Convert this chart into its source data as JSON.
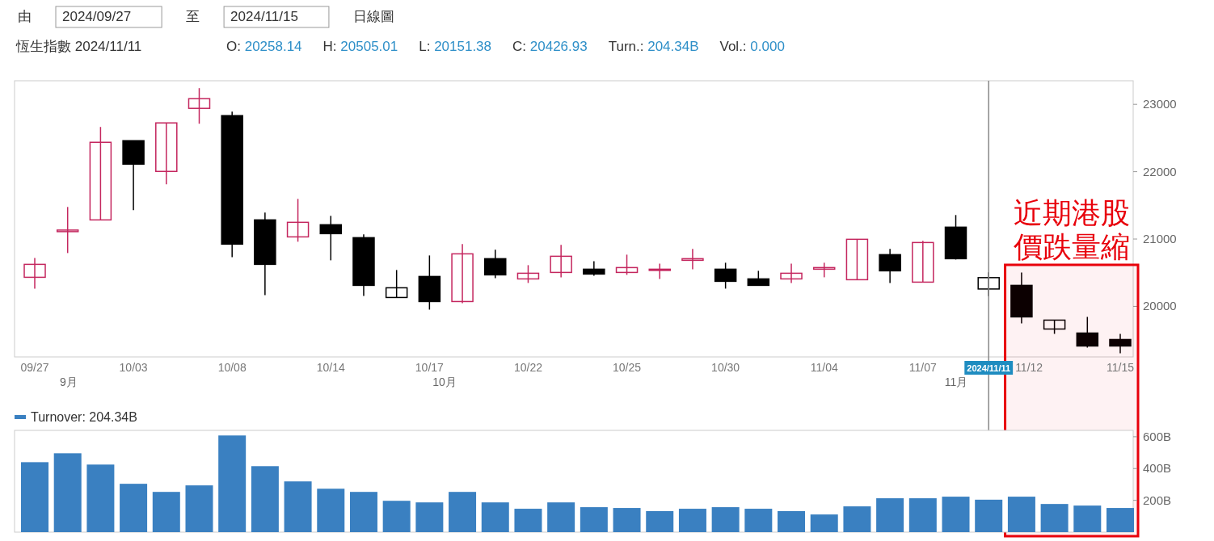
{
  "chart_data": [
    {
      "type": "candlestick",
      "title": "恆生指數 2024/11/11",
      "subtitle": "O: 20258.14  H: 20505.01  L: 20151.38  C: 20426.93  Turn.: 204.34B  Vol.: 0.000",
      "annotations": [
        "由",
        "2024/09/27",
        "至",
        "2024/11/15",
        "日線圖",
        "9月",
        "10月",
        "11月"
      ],
      "categories": [
        "09/27",
        null,
        null,
        "10/03",
        null,
        null,
        "10/08",
        null,
        null,
        "10/14",
        null,
        null,
        "10/17",
        null,
        null,
        "10/22",
        null,
        null,
        "10/25",
        null,
        null,
        "10/30",
        null,
        null,
        "11/04",
        null,
        null,
        "11/07",
        null,
        "2024/11/11",
        "11/12",
        null,
        null,
        "11/15"
      ],
      "ohlc": [
        [
          20432,
          20720,
          20264,
          20624
        ],
        [
          21110,
          21476,
          20792,
          21133
        ],
        [
          21284,
          22664,
          21284,
          22436
        ],
        [
          22460,
          22460,
          21428,
          22112
        ],
        [
          22004,
          22724,
          21812,
          22724
        ],
        [
          22940,
          23240,
          22712,
          23084
        ],
        [
          22832,
          22892,
          20732,
          20924
        ],
        [
          21284,
          21392,
          20168,
          20624
        ],
        [
          21032,
          21596,
          20960,
          21248
        ],
        [
          21212,
          21344,
          20684,
          21080
        ],
        [
          21020,
          21068,
          20156,
          20312
        ],
        [
          20132,
          20540,
          20132,
          20276
        ],
        [
          20444,
          20756,
          19952,
          20072
        ],
        [
          20072,
          20924,
          20048,
          20780
        ],
        [
          20708,
          20840,
          20420,
          20468
        ],
        [
          20408,
          20612,
          20348,
          20492
        ],
        [
          20504,
          20912,
          20432,
          20744
        ],
        [
          20552,
          20672,
          20456,
          20480
        ],
        [
          20504,
          20768,
          20468,
          20576
        ],
        [
          20540,
          20636,
          20408,
          20552
        ],
        [
          20684,
          20852,
          20552,
          20708
        ],
        [
          20552,
          20648,
          20264,
          20372
        ],
        [
          20408,
          20528,
          20312,
          20312
        ],
        [
          20408,
          20636,
          20348,
          20492
        ],
        [
          20552,
          20648,
          20432,
          20576
        ],
        [
          20396,
          20996,
          20396,
          20996
        ],
        [
          20768,
          20852,
          20348,
          20528
        ],
        [
          20360,
          20972,
          20360,
          20948
        ],
        [
          21176,
          21356,
          20696,
          20708
        ],
        [
          20258.14,
          20505.01,
          20151.38,
          20426.93
        ],
        [
          20312,
          20504,
          19748,
          19844
        ],
        [
          19664,
          19796,
          19592,
          19796
        ],
        [
          19604,
          19844,
          19388,
          19412
        ],
        [
          19508,
          19592,
          19304,
          19412
        ]
      ],
      "colors": [
        "#c4265e",
        "#c4265e",
        "#c4265e",
        "#000000",
        "#c4265e",
        "#c4265e",
        "#000000",
        "#000000",
        "#c4265e",
        "#000000",
        "#000000",
        "#000000",
        "#000000",
        "#c4265e",
        "#000000",
        "#c4265e",
        "#c4265e",
        "#000000",
        "#c4265e",
        "#c4265e",
        "#c4265e",
        "#000000",
        "#000000",
        "#c4265e",
        "#c4265e",
        "#c4265e",
        "#000000",
        "#c4265e",
        "#000000",
        "#000000",
        "#000000",
        "#000000",
        "#000000",
        "#000000"
      ],
      "ylim": [
        19250,
        23350
      ],
      "yticks": [
        20000,
        21000,
        22000,
        23000
      ],
      "ref_lines": [
        {
          "axis": "x",
          "value": "2024/11/11",
          "color": "#888888"
        }
      ],
      "bands": [
        {
          "axis": "x",
          "from": "11/12",
          "to": "11/15",
          "label": "近期港股價跌量縮",
          "color": "#e8000b"
        }
      ]
    },
    {
      "type": "bar",
      "legend": "top left",
      "categories": [
        null,
        null,
        null,
        null,
        null,
        null,
        null,
        null,
        null,
        null,
        null,
        null,
        null,
        null,
        null,
        null,
        null,
        null,
        null,
        null,
        null,
        null,
        null,
        null,
        null,
        null,
        null,
        null,
        null,
        null,
        null,
        null,
        null,
        null
      ],
      "series": [
        {
          "name": "Turnover: 204.34B",
          "color": "#3a80c1",
          "values": [
            440,
            496,
            425,
            304,
            253,
            294,
            608,
            415,
            319,
            273,
            253,
            197,
            187,
            253,
            187,
            147,
            187,
            157,
            152,
            132,
            147,
            157,
            147,
            132,
            111,
            162,
            213,
            213,
            223,
            204,
            223,
            177,
            167,
            152
          ]
        }
      ],
      "ylim": [
        0,
        640
      ],
      "yticks": [
        {
          "value": 200,
          "label": "200B"
        },
        {
          "value": 400,
          "label": "400B"
        },
        {
          "value": 600,
          "label": "600B"
        }
      ]
    }
  ]
}
